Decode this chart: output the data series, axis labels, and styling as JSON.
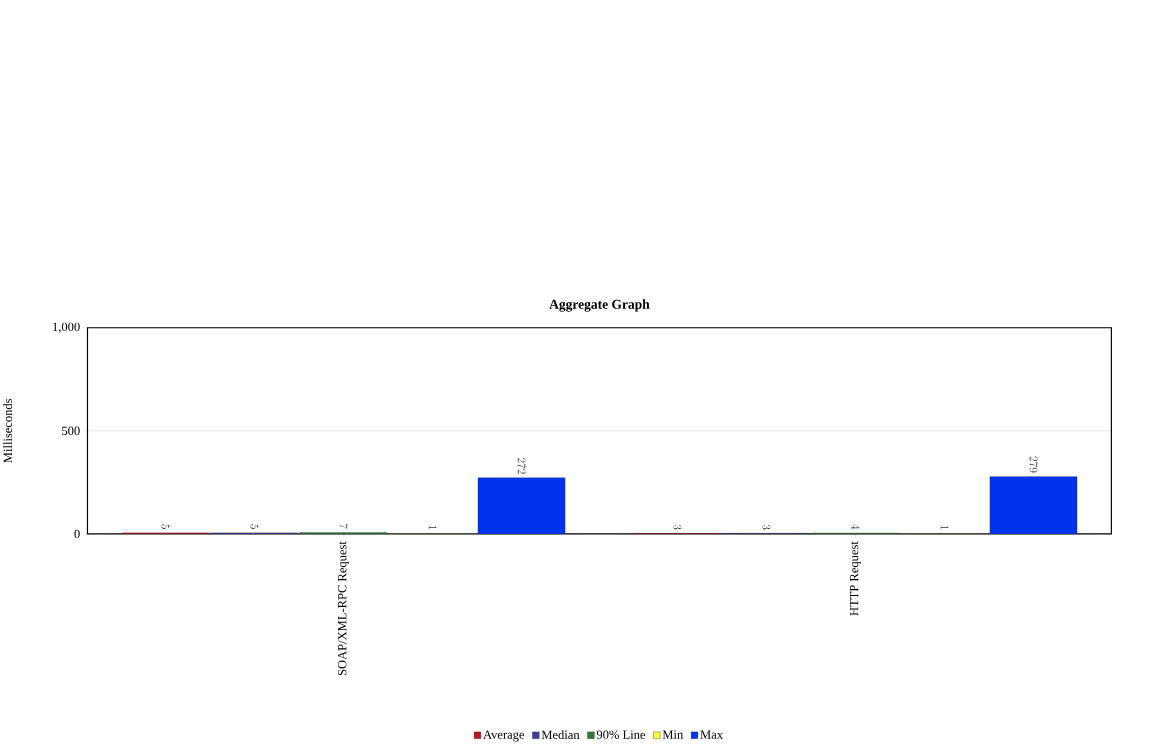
{
  "chart_data": {
    "type": "bar",
    "title": "Aggregate Graph",
    "ylabel": "Milliseconds",
    "categories": [
      "SOAP/XML-RPC Request",
      "HTTP Request"
    ],
    "series": [
      {
        "name": "Average",
        "color": "#c0141c",
        "values": [
          5,
          3
        ]
      },
      {
        "name": "Median",
        "color": "#3c3ca0",
        "values": [
          5,
          3
        ]
      },
      {
        "name": "90% Line",
        "color": "#2e7d32",
        "values": [
          7,
          4
        ]
      },
      {
        "name": "Min",
        "color": "#ffff33",
        "values": [
          1,
          1
        ]
      },
      {
        "name": "Max",
        "color": "#0033ee",
        "values": [
          272,
          279
        ]
      }
    ],
    "ylim": [
      0,
      1000
    ],
    "yticks": [
      0,
      500,
      {
        "value": 1000,
        "label": "1,000"
      }
    ],
    "grid": "y",
    "legend": "bottom",
    "data_labels": true
  }
}
